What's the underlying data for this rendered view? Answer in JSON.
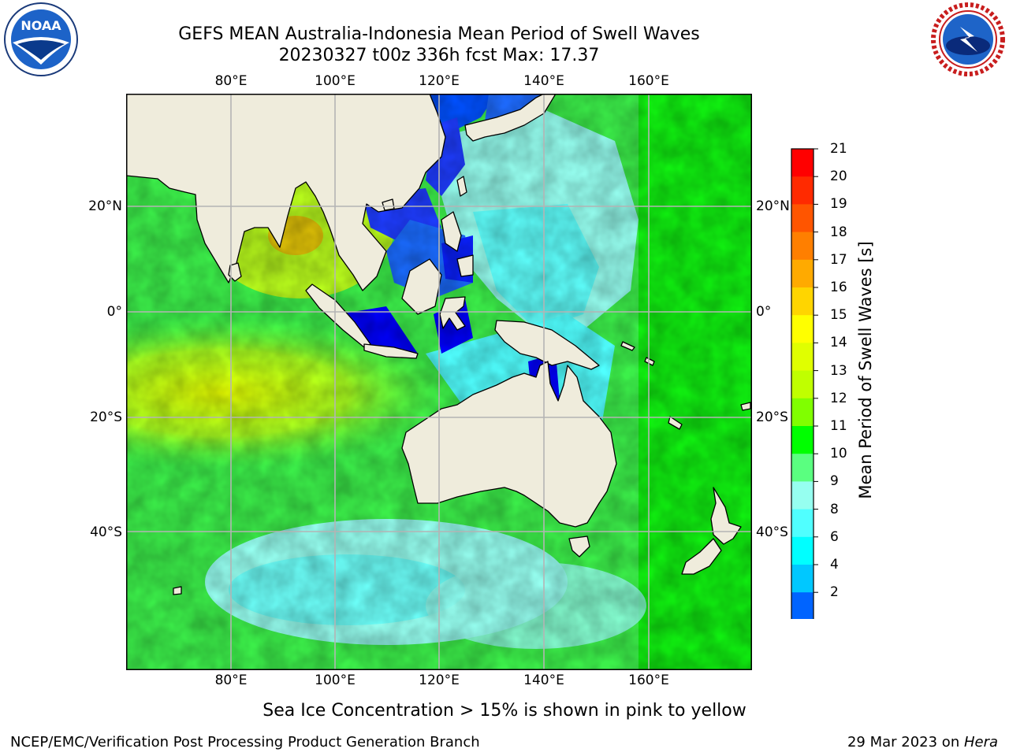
{
  "header": {
    "title_line1": "GEFS MEAN Australia-Indonesia Mean Period of Swell Waves",
    "title_line2": "20230327 t00z 336h fcst   Max: 17.37"
  },
  "logos": {
    "left": "NOAA",
    "right": "NATIONAL WEATHER SERVICE"
  },
  "map": {
    "lon_ticks": [
      "80°E",
      "100°E",
      "120°E",
      "140°E",
      "160°E"
    ],
    "lat_ticks": [
      "20°N",
      "0°",
      "20°S",
      "40°S"
    ]
  },
  "colorbar": {
    "label": "Mean Period of Swell Waves [s]",
    "ticks": [
      "21",
      "20",
      "19",
      "18",
      "17",
      "16",
      "15",
      "14",
      "13",
      "12",
      "11",
      "10",
      "9",
      "8",
      "6",
      "4",
      "2"
    ],
    "colors": [
      "#ff0000",
      "#ff2a00",
      "#ff5500",
      "#ff7f00",
      "#ffaa00",
      "#ffd500",
      "#ffff00",
      "#e0ff00",
      "#c0ff00",
      "#80ff00",
      "#00ff00",
      "#5aff80",
      "#96fff0",
      "#50ffff",
      "#00ffff",
      "#00c8ff",
      "#0064ff"
    ],
    "extend_color": "#0000ff"
  },
  "note": "Sea Ice Concentration > 15% is shown in pink to yellow",
  "footer": {
    "left": "NCEP/EMC/Verification Post Processing Product Generation Branch",
    "right_date": "29 Mar 2023 on ",
    "right_machine": "Hera"
  }
}
